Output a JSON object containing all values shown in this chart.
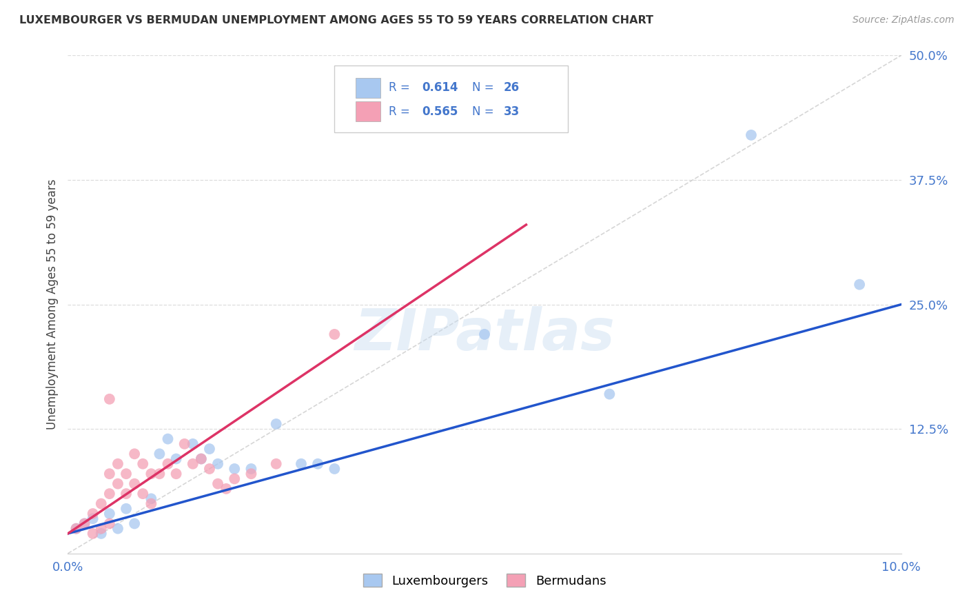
{
  "title": "LUXEMBOURGER VS BERMUDAN UNEMPLOYMENT AMONG AGES 55 TO 59 YEARS CORRELATION CHART",
  "source": "Source: ZipAtlas.com",
  "ylabel": "Unemployment Among Ages 55 to 59 years",
  "xlim": [
    0.0,
    0.1
  ],
  "ylim": [
    0.0,
    0.5
  ],
  "lux_R": 0.614,
  "lux_N": 26,
  "berm_R": 0.565,
  "berm_N": 33,
  "lux_color": "#A8C8F0",
  "berm_color": "#F4A0B5",
  "lux_line_color": "#2255CC",
  "berm_line_color": "#DD3366",
  "ref_line_color": "#CCCCCC",
  "grid_color": "#DDDDDD",
  "tick_color": "#4477CC",
  "watermark": "ZIPatlas",
  "legend_entries": [
    "Luxembourgers",
    "Bermudans"
  ],
  "background_color": "#FFFFFF",
  "lux_x": [
    0.001,
    0.002,
    0.003,
    0.004,
    0.005,
    0.006,
    0.007,
    0.008,
    0.01,
    0.011,
    0.012,
    0.013,
    0.015,
    0.016,
    0.017,
    0.018,
    0.02,
    0.022,
    0.025,
    0.028,
    0.03,
    0.032,
    0.05,
    0.065,
    0.082,
    0.095
  ],
  "lux_y": [
    0.025,
    0.03,
    0.035,
    0.02,
    0.04,
    0.025,
    0.045,
    0.03,
    0.055,
    0.1,
    0.115,
    0.095,
    0.11,
    0.095,
    0.105,
    0.09,
    0.085,
    0.085,
    0.13,
    0.09,
    0.09,
    0.085,
    0.22,
    0.16,
    0.42,
    0.27
  ],
  "berm_x": [
    0.001,
    0.002,
    0.003,
    0.003,
    0.004,
    0.004,
    0.005,
    0.005,
    0.005,
    0.006,
    0.006,
    0.007,
    0.007,
    0.008,
    0.008,
    0.009,
    0.009,
    0.01,
    0.01,
    0.011,
    0.012,
    0.013,
    0.014,
    0.015,
    0.016,
    0.017,
    0.018,
    0.019,
    0.02,
    0.022,
    0.025,
    0.032,
    0.005
  ],
  "berm_y": [
    0.025,
    0.03,
    0.02,
    0.04,
    0.025,
    0.05,
    0.03,
    0.06,
    0.08,
    0.07,
    0.09,
    0.06,
    0.08,
    0.07,
    0.1,
    0.06,
    0.09,
    0.08,
    0.05,
    0.08,
    0.09,
    0.08,
    0.11,
    0.09,
    0.095,
    0.085,
    0.07,
    0.065,
    0.075,
    0.08,
    0.09,
    0.22,
    0.155
  ],
  "lux_line_x": [
    0.0,
    0.1
  ],
  "lux_line_y": [
    0.02,
    0.25
  ],
  "berm_line_x": [
    0.0,
    0.055
  ],
  "berm_line_y": [
    0.02,
    0.33
  ]
}
